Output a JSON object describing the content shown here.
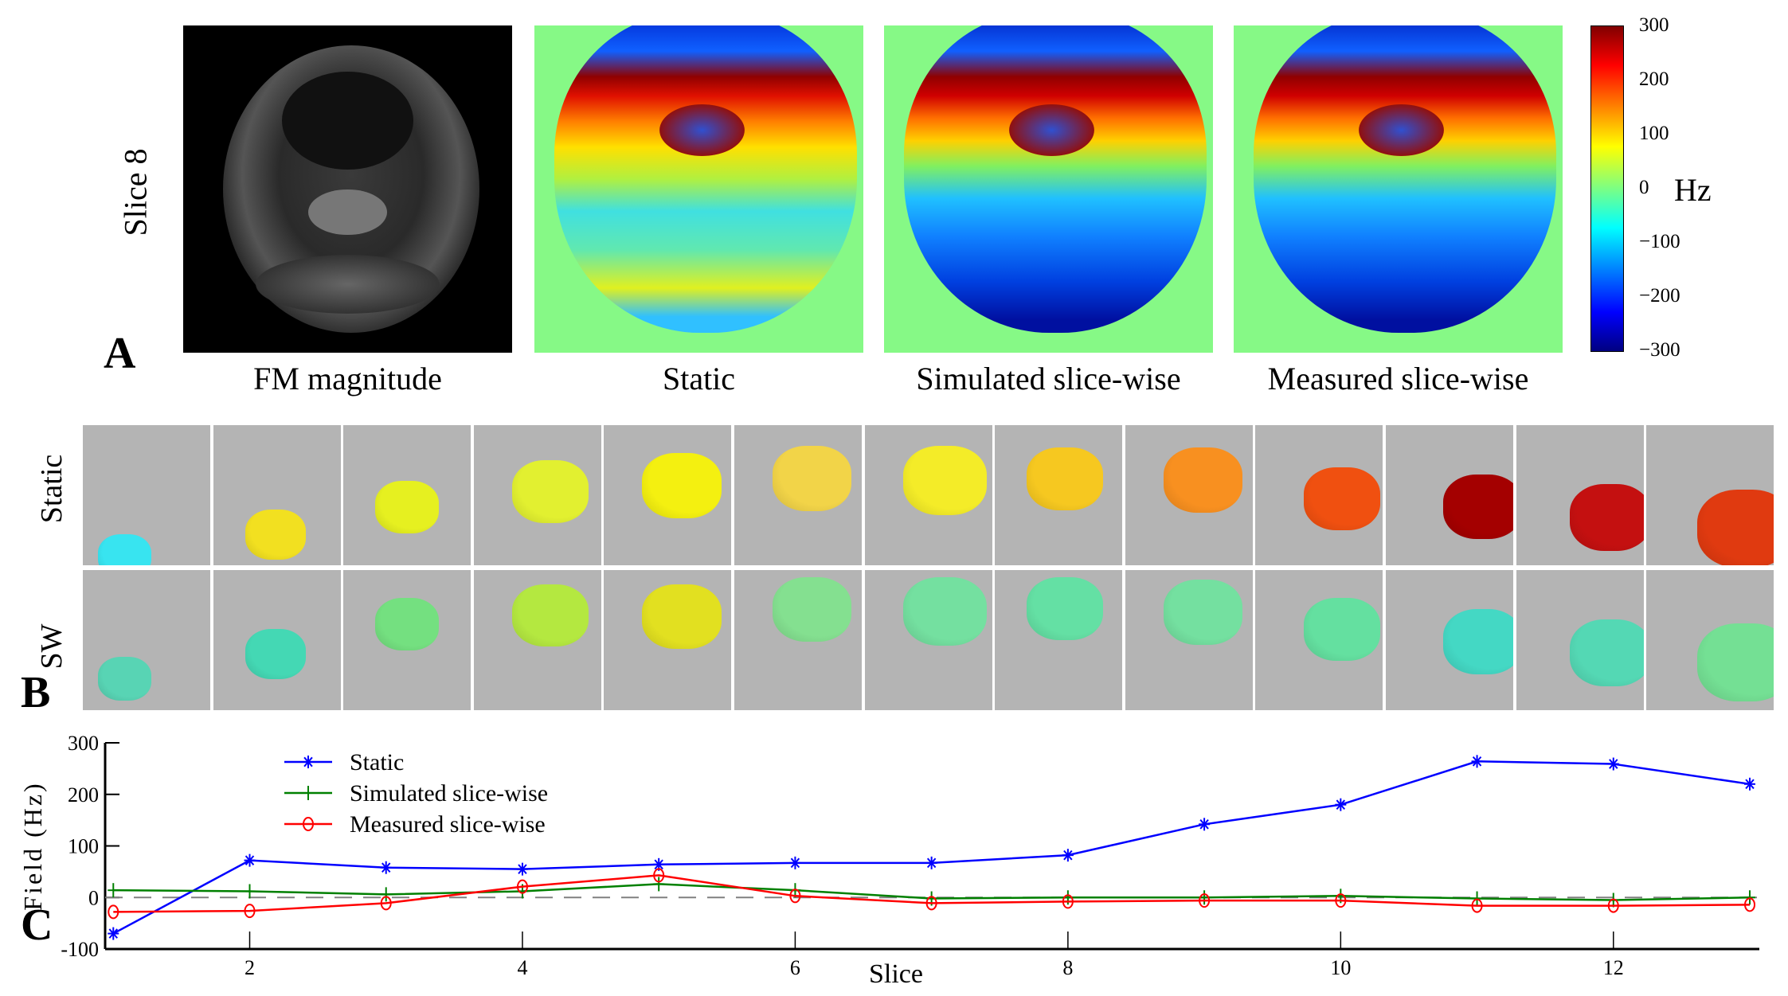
{
  "panel_a": {
    "letter": "A",
    "row_label": "Slice 8",
    "captions": [
      "FM magnitude",
      "Static",
      "Simulated slice-wise",
      "Measured slice-wise"
    ],
    "colorbar": {
      "ticks": [
        "300",
        "200",
        "100",
        "0",
        "−100",
        "−200",
        "−300"
      ],
      "unit": "Hz",
      "range": [
        -300,
        300
      ],
      "colormap": "jet"
    }
  },
  "panel_b": {
    "letter": "B",
    "row_labels": [
      "Static",
      "SW"
    ],
    "static_colors": [
      "#38e4f0",
      "#f2e020",
      "#e6f020",
      "#e2f030",
      "#f4f010",
      "#f2d448",
      "#f4ec28",
      "#f6c820",
      "#f89020",
      "#f05010",
      "#a40000",
      "#c41010",
      "#e03a10"
    ],
    "sw_colors": [
      "#58d4b4",
      "#44d8b4",
      "#74e080",
      "#b4e840",
      "#e2e020",
      "#84e090",
      "#74e0a0",
      "#64e0a4",
      "#74e0a0",
      "#64e0a0",
      "#44d8c4",
      "#54d8b4",
      "#74e094"
    ]
  },
  "chart_data": {
    "type": "line",
    "letter": "C",
    "title": "",
    "xlabel": "Slice",
    "ylabel": "Field (Hz)",
    "x": [
      1,
      2,
      3,
      4,
      5,
      6,
      7,
      8,
      9,
      10,
      11,
      12,
      13
    ],
    "xlim": [
      0.94,
      13.07
    ],
    "ylim": [
      -100,
      300
    ],
    "xticks": [
      2,
      4,
      6,
      8,
      10,
      12
    ],
    "yticks": [
      -100,
      0,
      100,
      200,
      300
    ],
    "grid": false,
    "legend_position": "top-left",
    "reference_line": {
      "y": 0,
      "style": "dashed",
      "color": "#808080"
    },
    "series": [
      {
        "name": "Static",
        "color": "#0000ff",
        "marker": "asterisk",
        "values": [
          -70,
          72,
          58,
          55,
          64,
          67,
          67,
          82,
          142,
          180,
          264,
          259,
          220
        ]
      },
      {
        "name": "Simulated slice-wise",
        "color": "#008000",
        "marker": "plus",
        "values": [
          14,
          12,
          6,
          12,
          26,
          14,
          -2,
          0,
          0,
          3,
          -2,
          -5,
          0
        ]
      },
      {
        "name": "Measured slice-wise",
        "color": "#ff0000",
        "marker": "circle",
        "values": [
          -28,
          -26,
          -11,
          21,
          43,
          3,
          -11,
          -8,
          -6,
          -6,
          -16,
          -16,
          -14
        ]
      }
    ]
  }
}
